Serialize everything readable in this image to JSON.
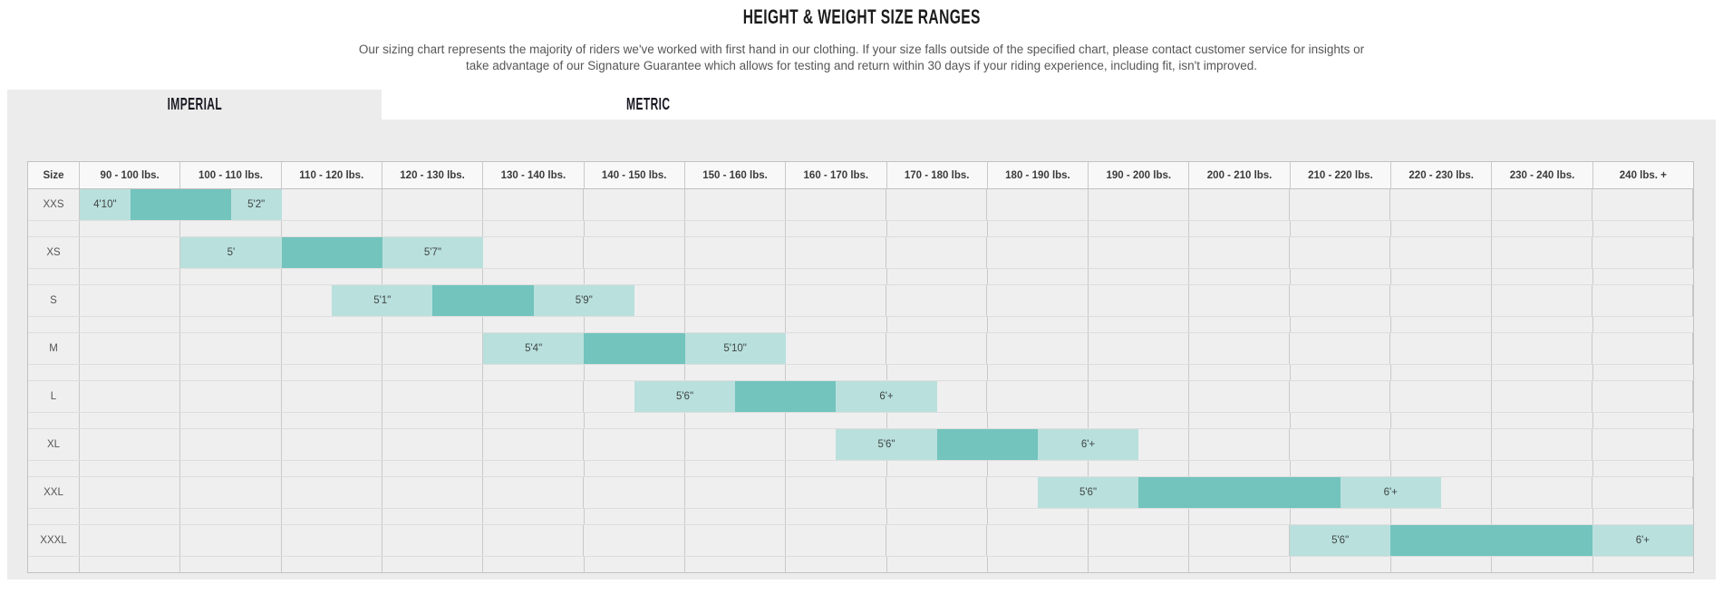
{
  "page": {
    "title": "HEIGHT & WEIGHT SIZE RANGES",
    "description_lines": [
      "Our sizing chart represents the majority of riders we've worked with first hand in our clothing. If your size falls outside of the specified chart, please contact customer service for insights or",
      "take advantage of our Signature Guarantee which allows for testing and return within 30 days if your riding experience, including fit, isn't improved."
    ]
  },
  "tabs": [
    {
      "label": "IMPERIAL",
      "active": true
    },
    {
      "label": "METRIC",
      "active": false
    }
  ],
  "colors": {
    "light_teal": "#b9e0dd",
    "dark_teal": "#72c4bd",
    "page_bg": "#ececec",
    "cell_bg": "#efefef",
    "header_bg": "#f8f8f8",
    "grid_v": "#c9c9c9",
    "grid_h": "#dddddd",
    "border": "#c2c2c2"
  },
  "chart_data": {
    "type": "table",
    "title": "HEIGHT & WEIGHT SIZE RANGES",
    "unit_system": "imperial",
    "size_column_header": "Size",
    "weight_columns": [
      "90 - 100 lbs.",
      "100 - 110 lbs.",
      "110 - 120 lbs.",
      "120 - 130 lbs.",
      "130 - 140 lbs.",
      "140 - 150 lbs.",
      "150 - 160 lbs.",
      "160 - 170 lbs.",
      "170 - 180 lbs.",
      "180 - 190 lbs.",
      "190 - 200 lbs.",
      "200 - 210 lbs.",
      "210 - 220 lbs.",
      "220 - 230 lbs.",
      "230 - 240 lbs.",
      "240 lbs. +"
    ],
    "rows": [
      {
        "size": "XXS",
        "min_height": "4'10\"",
        "max_height": "5'2\"",
        "band_start_col": 0,
        "segments": [
          0.5,
          1,
          0.5
        ]
      },
      {
        "size": "XS",
        "min_height": "5'",
        "max_height": "5'7\"",
        "band_start_col": 1,
        "segments": [
          1,
          1,
          1
        ]
      },
      {
        "size": "S",
        "min_height": "5'1\"",
        "max_height": "5'9\"",
        "band_start_col": 2.5,
        "segments": [
          1,
          1,
          1
        ]
      },
      {
        "size": "M",
        "min_height": "5'4\"",
        "max_height": "5'10\"",
        "band_start_col": 4,
        "segments": [
          1,
          1,
          1
        ]
      },
      {
        "size": "L",
        "min_height": "5'6\"",
        "max_height": "6'+",
        "band_start_col": 5.5,
        "segments": [
          1,
          1,
          1
        ]
      },
      {
        "size": "XL",
        "min_height": "5'6\"",
        "max_height": "6'+",
        "band_start_col": 7.5,
        "segments": [
          1,
          1,
          1
        ]
      },
      {
        "size": "XXL",
        "min_height": "5'6\"",
        "max_height": "6'+",
        "band_start_col": 9.5,
        "segments": [
          1,
          2,
          1
        ]
      },
      {
        "size": "XXXL",
        "min_height": "5'6\"",
        "max_height": "6'+",
        "band_start_col": 12,
        "segments": [
          1,
          2,
          1
        ]
      }
    ]
  }
}
